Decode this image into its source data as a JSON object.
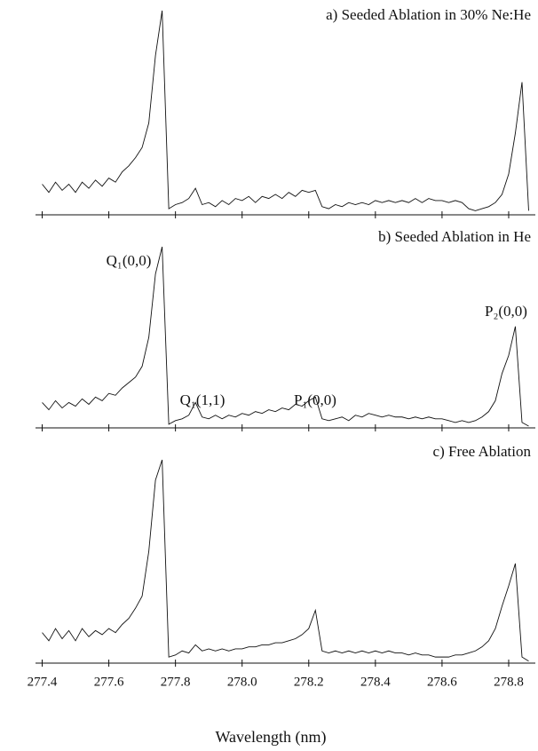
{
  "chart_data": [
    {
      "type": "line",
      "title": "a) Seeded Ablation in 30% Ne:He",
      "x": [
        277.4,
        277.42,
        277.44,
        277.46,
        277.48,
        277.5,
        277.52,
        277.54,
        277.56,
        277.58,
        277.6,
        277.62,
        277.64,
        277.66,
        277.68,
        277.7,
        277.72,
        277.74,
        277.76,
        277.78,
        277.8,
        277.82,
        277.84,
        277.86,
        277.88,
        277.9,
        277.92,
        277.94,
        277.96,
        277.98,
        278.0,
        278.02,
        278.04,
        278.06,
        278.08,
        278.1,
        278.12,
        278.14,
        278.16,
        278.18,
        278.2,
        278.22,
        278.24,
        278.26,
        278.28,
        278.3,
        278.32,
        278.34,
        278.36,
        278.38,
        278.4,
        278.42,
        278.44,
        278.46,
        278.48,
        278.5,
        278.52,
        278.54,
        278.56,
        278.58,
        278.6,
        278.62,
        278.64,
        278.66,
        278.68,
        278.7,
        278.72,
        278.74,
        278.76,
        278.78,
        278.8,
        278.82,
        278.84,
        278.86
      ],
      "values": [
        0.15,
        0.11,
        0.16,
        0.12,
        0.15,
        0.11,
        0.16,
        0.13,
        0.17,
        0.14,
        0.18,
        0.16,
        0.21,
        0.24,
        0.28,
        0.33,
        0.45,
        0.78,
        1.0,
        0.03,
        0.05,
        0.06,
        0.08,
        0.13,
        0.05,
        0.06,
        0.04,
        0.07,
        0.05,
        0.08,
        0.07,
        0.09,
        0.06,
        0.09,
        0.08,
        0.1,
        0.08,
        0.11,
        0.09,
        0.12,
        0.11,
        0.12,
        0.04,
        0.03,
        0.05,
        0.04,
        0.06,
        0.05,
        0.06,
        0.05,
        0.07,
        0.06,
        0.07,
        0.06,
        0.07,
        0.06,
        0.08,
        0.06,
        0.08,
        0.07,
        0.07,
        0.06,
        0.07,
        0.06,
        0.03,
        0.02,
        0.03,
        0.04,
        0.06,
        0.1,
        0.2,
        0.4,
        0.65,
        0.02
      ],
      "color": "#111111",
      "xlim": [
        277.38,
        278.88
      ],
      "ylim": [
        0,
        1
      ],
      "xticks": [
        277.4,
        277.6,
        277.8,
        278,
        278.2,
        278.4,
        278.6,
        278.8
      ]
    },
    {
      "type": "line",
      "title": "b) Seeded Ablation in He",
      "annotations": [
        "Q₁(0,0)",
        "Q₁(1,1)",
        "P₁(0,0)",
        "P₂(0,0)"
      ],
      "x": [
        277.4,
        277.42,
        277.44,
        277.46,
        277.48,
        277.5,
        277.52,
        277.54,
        277.56,
        277.58,
        277.6,
        277.62,
        277.64,
        277.66,
        277.68,
        277.7,
        277.72,
        277.74,
        277.76,
        277.78,
        277.8,
        277.82,
        277.84,
        277.86,
        277.88,
        277.9,
        277.92,
        277.94,
        277.96,
        277.98,
        278.0,
        278.02,
        278.04,
        278.06,
        278.08,
        278.1,
        278.12,
        278.14,
        278.16,
        278.18,
        278.2,
        278.22,
        278.24,
        278.26,
        278.28,
        278.3,
        278.32,
        278.34,
        278.36,
        278.38,
        278.4,
        278.42,
        278.44,
        278.46,
        278.48,
        278.5,
        278.52,
        278.54,
        278.56,
        278.58,
        278.6,
        278.62,
        278.64,
        278.66,
        278.68,
        278.7,
        278.72,
        278.74,
        278.76,
        278.78,
        278.8,
        278.82,
        278.84,
        278.86
      ],
      "values": [
        0.14,
        0.1,
        0.15,
        0.11,
        0.14,
        0.12,
        0.16,
        0.13,
        0.17,
        0.15,
        0.19,
        0.18,
        0.22,
        0.25,
        0.28,
        0.34,
        0.5,
        0.85,
        1.0,
        0.02,
        0.04,
        0.05,
        0.07,
        0.14,
        0.06,
        0.05,
        0.07,
        0.05,
        0.07,
        0.06,
        0.08,
        0.07,
        0.09,
        0.08,
        0.1,
        0.09,
        0.11,
        0.1,
        0.13,
        0.12,
        0.15,
        0.17,
        0.05,
        0.04,
        0.05,
        0.06,
        0.04,
        0.07,
        0.06,
        0.08,
        0.07,
        0.06,
        0.07,
        0.06,
        0.06,
        0.05,
        0.06,
        0.05,
        0.06,
        0.05,
        0.05,
        0.04,
        0.03,
        0.04,
        0.03,
        0.04,
        0.06,
        0.09,
        0.15,
        0.3,
        0.4,
        0.56,
        0.03,
        0.01
      ],
      "color": "#111111",
      "xlim": [
        277.38,
        278.88
      ],
      "ylim": [
        0,
        1
      ],
      "xticks": [
        277.4,
        277.6,
        277.8,
        278,
        278.2,
        278.4,
        278.6,
        278.8
      ]
    },
    {
      "type": "line",
      "title": "c) Free Ablation",
      "xlabel": "Wavelength (nm)",
      "x": [
        277.4,
        277.42,
        277.44,
        277.46,
        277.48,
        277.5,
        277.52,
        277.54,
        277.56,
        277.58,
        277.6,
        277.62,
        277.64,
        277.66,
        277.68,
        277.7,
        277.72,
        277.74,
        277.76,
        277.78,
        277.8,
        277.82,
        277.84,
        277.86,
        277.88,
        277.9,
        277.92,
        277.94,
        277.96,
        277.98,
        278.0,
        278.02,
        278.04,
        278.06,
        278.08,
        278.1,
        278.12,
        278.14,
        278.16,
        278.18,
        278.2,
        278.22,
        278.24,
        278.26,
        278.28,
        278.3,
        278.32,
        278.34,
        278.36,
        278.38,
        278.4,
        278.42,
        278.44,
        278.46,
        278.48,
        278.5,
        278.52,
        278.54,
        278.56,
        278.58,
        278.6,
        278.62,
        278.64,
        278.66,
        278.68,
        278.7,
        278.72,
        278.74,
        278.76,
        278.78,
        278.8,
        278.82,
        278.84,
        278.86
      ],
      "values": [
        0.15,
        0.11,
        0.17,
        0.12,
        0.16,
        0.11,
        0.17,
        0.13,
        0.16,
        0.14,
        0.17,
        0.15,
        0.19,
        0.22,
        0.27,
        0.33,
        0.55,
        0.9,
        1.0,
        0.03,
        0.04,
        0.06,
        0.05,
        0.09,
        0.06,
        0.07,
        0.06,
        0.07,
        0.06,
        0.07,
        0.07,
        0.08,
        0.08,
        0.09,
        0.09,
        0.1,
        0.1,
        0.11,
        0.12,
        0.14,
        0.17,
        0.26,
        0.06,
        0.05,
        0.06,
        0.05,
        0.06,
        0.05,
        0.06,
        0.05,
        0.06,
        0.05,
        0.06,
        0.05,
        0.05,
        0.04,
        0.05,
        0.04,
        0.04,
        0.03,
        0.03,
        0.03,
        0.04,
        0.04,
        0.05,
        0.06,
        0.08,
        0.11,
        0.17,
        0.28,
        0.38,
        0.49,
        0.03,
        0.01
      ],
      "color": "#111111",
      "xlim": [
        277.38,
        278.88
      ],
      "ylim": [
        0,
        1
      ],
      "xticks": [
        277.4,
        277.6,
        277.8,
        {
          "value": 278,
          "label": "278.0"
        },
        278.2,
        278.4,
        278.6,
        278.8
      ]
    }
  ]
}
